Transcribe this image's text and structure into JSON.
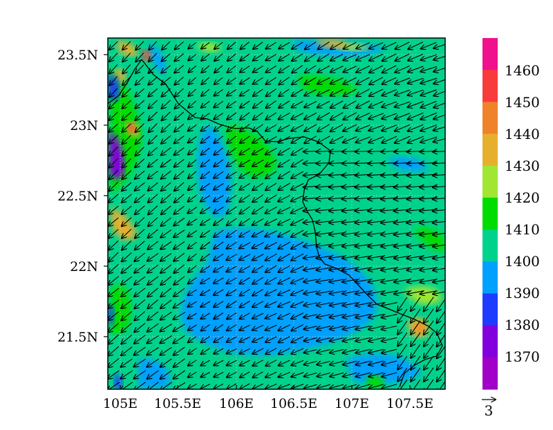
{
  "map": {
    "lat_ticks": [
      "23.5N",
      "23N",
      "22.5N",
      "22N",
      "21.5N"
    ],
    "lon_ticks": [
      "105E",
      "105.5E",
      "106E",
      "106.5E",
      "107E",
      "107.5E"
    ],
    "extent": {
      "lon": [
        104.9,
        107.8
      ],
      "lat": [
        21.1,
        23.65
      ]
    }
  },
  "colorbar": {
    "labels": [
      "1460",
      "1450",
      "1440",
      "1430",
      "1420",
      "1410",
      "1400",
      "1390",
      "1380",
      "1370"
    ],
    "colors": [
      "#f0128c",
      "#f83c3c",
      "#f0822a",
      "#e6af2d",
      "#a0e632",
      "#00dc00",
      "#00d28c",
      "#00a0ff",
      "#1e3cff",
      "#8200dc",
      "#a000c8"
    ]
  },
  "vector_ref": {
    "label": "3"
  }
}
